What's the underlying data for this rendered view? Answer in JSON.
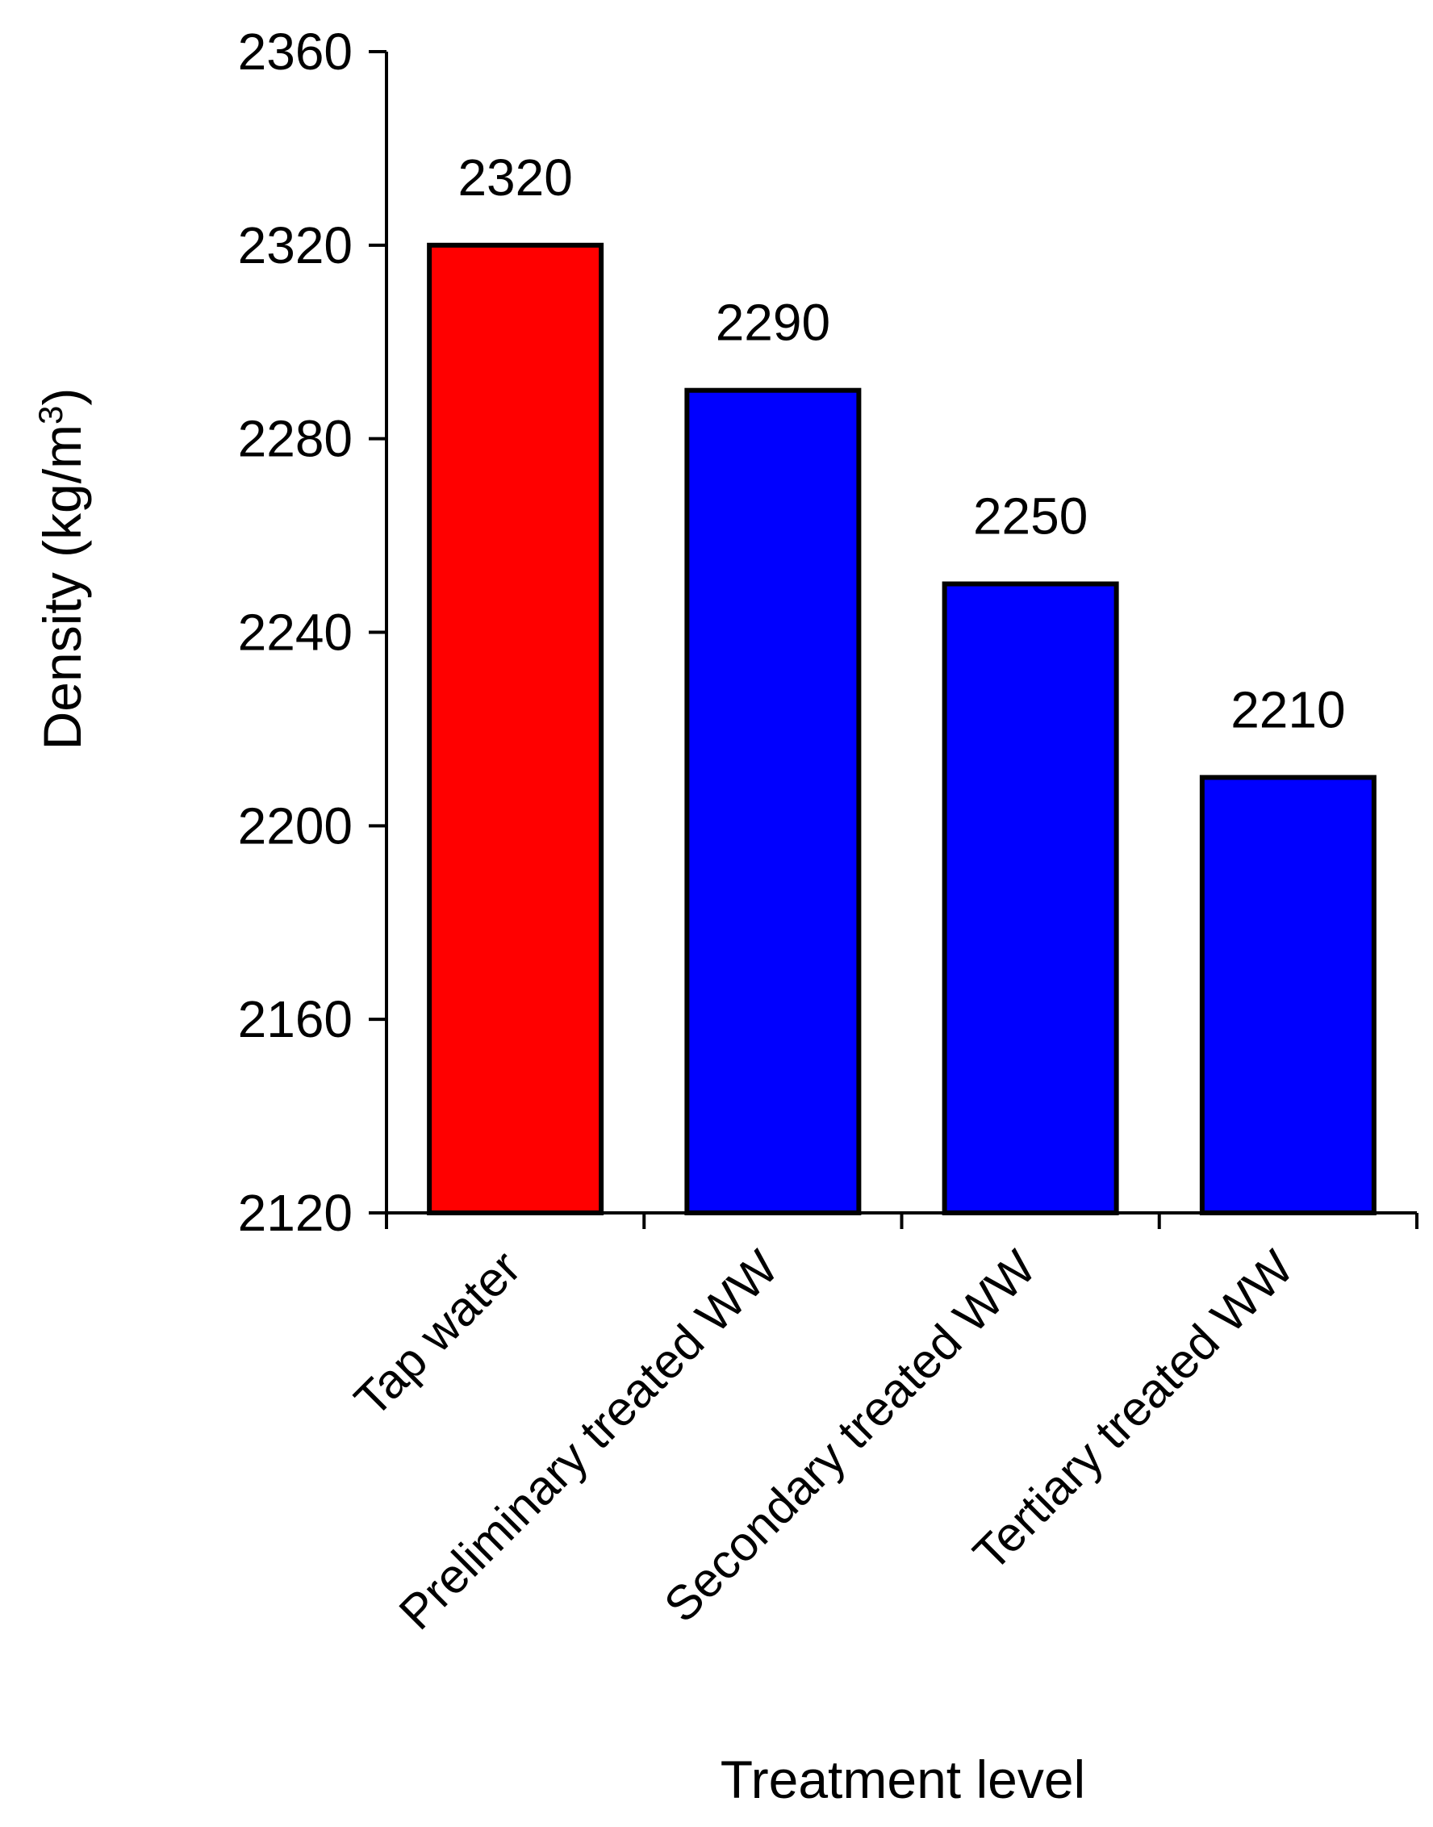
{
  "chart_data": {
    "type": "bar",
    "categories": [
      "Tap water",
      "Preliminary treated WW",
      "Secondary treated WW",
      "Tertiary treated WW"
    ],
    "values": [
      2320,
      2290,
      2250,
      2210
    ],
    "data_labels": [
      "2320",
      "2290",
      "2250",
      "2210"
    ],
    "bar_colors": [
      "#ff0000",
      "#0000ff",
      "#0000ff",
      "#0000ff"
    ],
    "xlabel": "Treatment level",
    "ylabel": {
      "text": "Density (kg/m",
      "superscript": "3",
      "close": ")"
    },
    "ylim": [
      2120,
      2360
    ],
    "yticks": [
      2120,
      2160,
      2200,
      2240,
      2280,
      2320,
      2360
    ],
    "ytick_labels": [
      "2120",
      "2160",
      "2200",
      "2240",
      "2280",
      "2320",
      "2360"
    ],
    "grid": false,
    "legend": "none"
  }
}
